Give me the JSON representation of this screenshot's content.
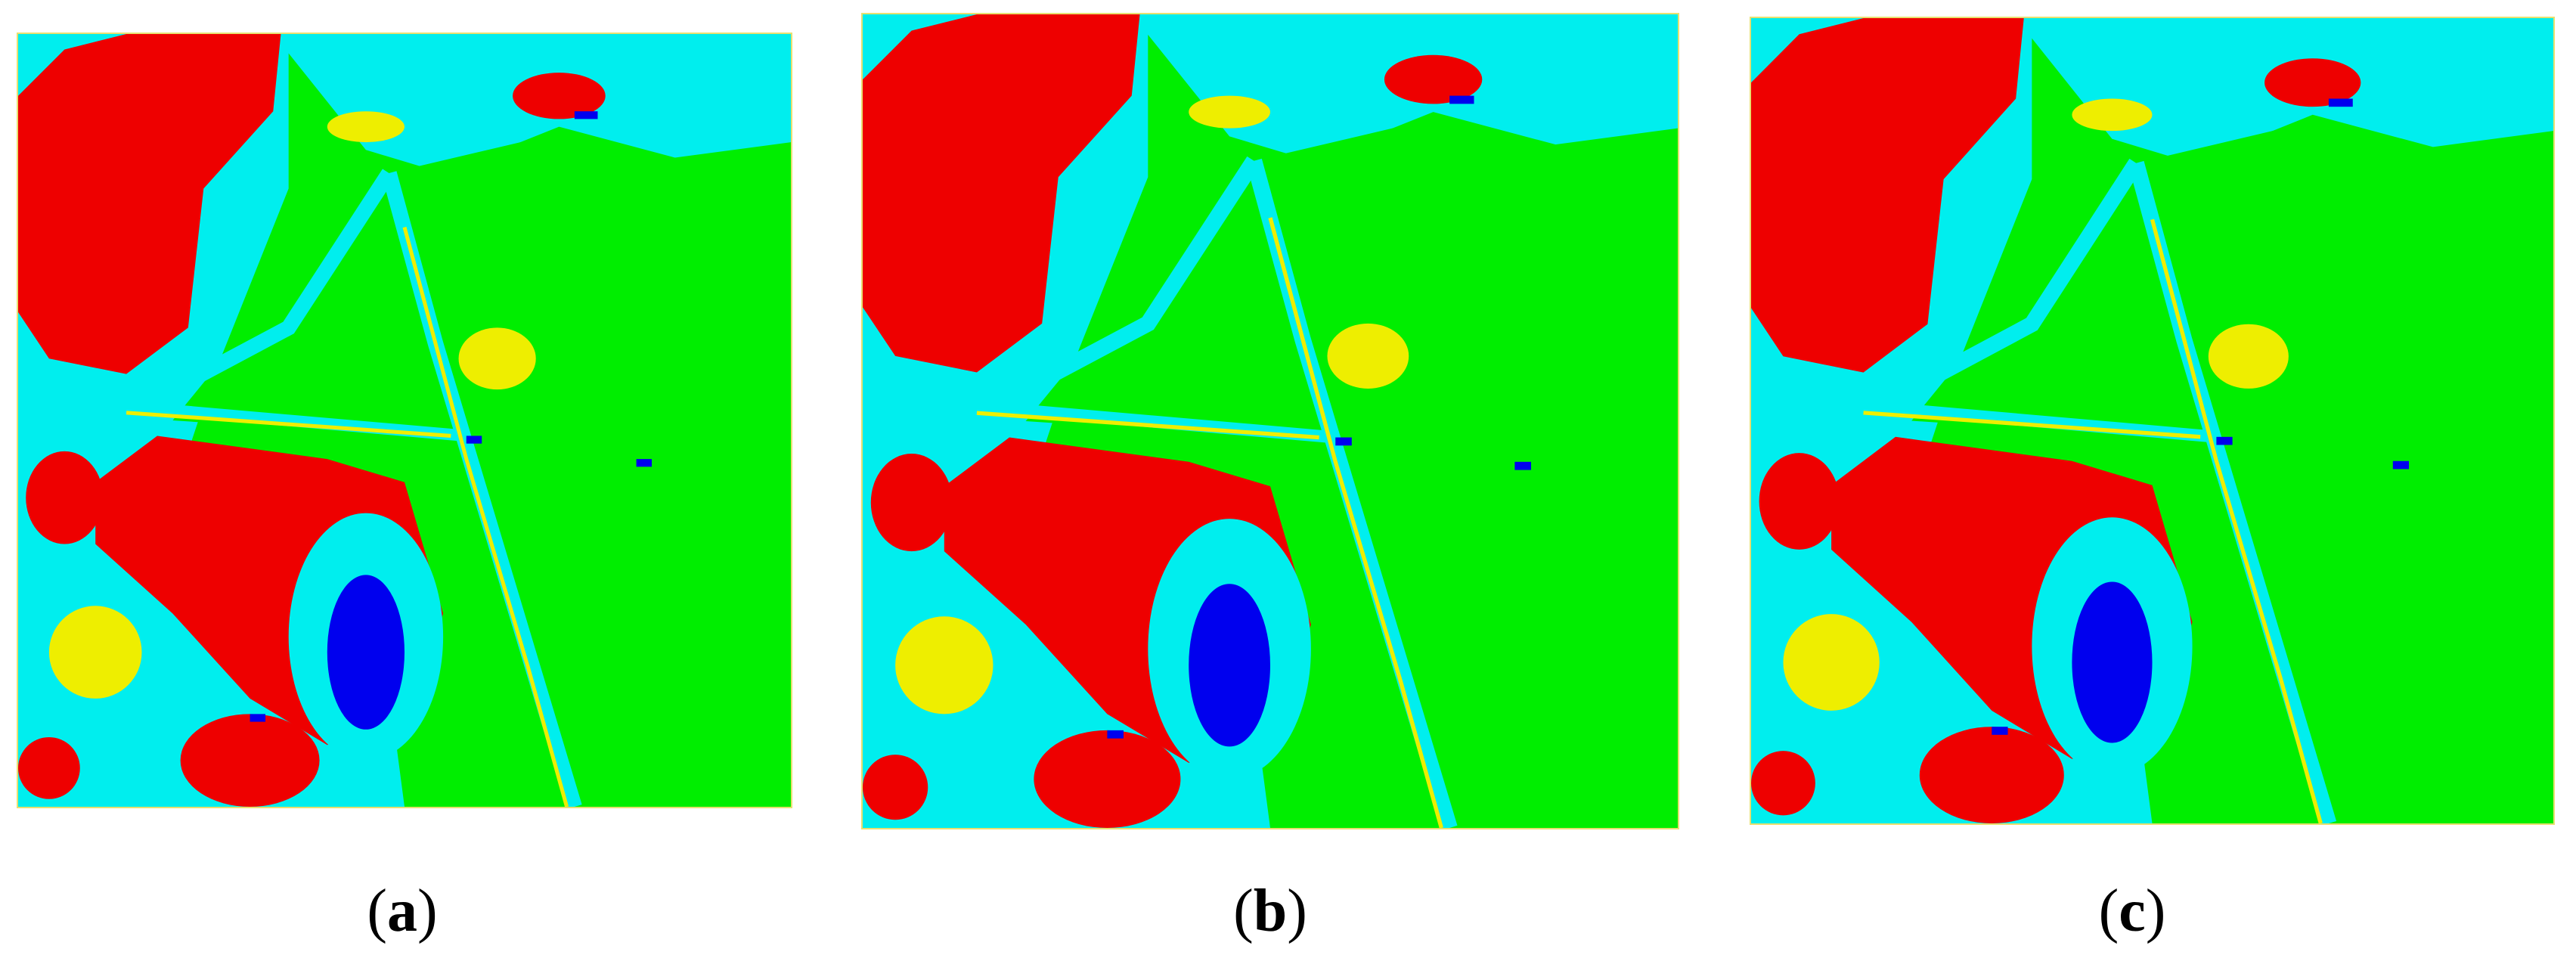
{
  "panels": [
    {
      "caption": {
        "open": "(",
        "label": "a",
        "close": ")"
      }
    },
    {
      "caption": {
        "open": "(",
        "label": "b",
        "close": ")"
      }
    },
    {
      "caption": {
        "open": "(",
        "label": "c",
        "close": ")"
      }
    }
  ]
}
